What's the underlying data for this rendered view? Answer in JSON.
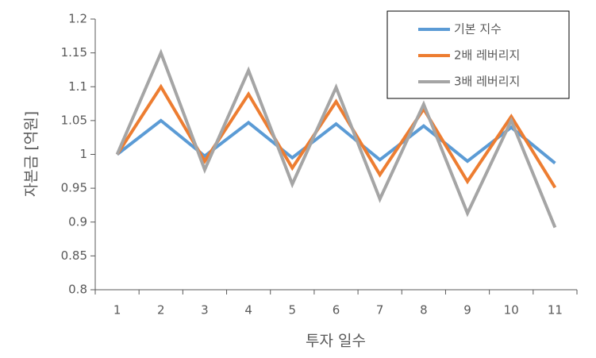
{
  "chart_data": {
    "type": "line",
    "y_label": "자본금 [억원]",
    "x_label": "투자 일수",
    "categories": [
      "1",
      "2",
      "3",
      "4",
      "5",
      "6",
      "7",
      "8",
      "9",
      "10",
      "11"
    ],
    "series": [
      {
        "name": "기본 지수",
        "color": "#5b9bd5",
        "values": [
          1,
          1.05,
          0.9975,
          1.047,
          0.995,
          1.045,
          0.992,
          1.042,
          0.99,
          1.04,
          0.987
        ]
      },
      {
        "name": "2배 레버리지",
        "color": "#ed7d31",
        "values": [
          1,
          1.1,
          0.99,
          1.089,
          0.98,
          1.078,
          0.97,
          1.067,
          0.96,
          1.056,
          0.951
        ]
      },
      {
        "name": "3배 레버리지",
        "color": "#a5a5a5",
        "values": [
          1,
          1.15,
          0.9775,
          1.124,
          0.956,
          1.099,
          0.934,
          1.074,
          0.913,
          1.05,
          0.892
        ]
      }
    ],
    "ylim": [
      0.8,
      1.2
    ],
    "yticks": [
      0.8,
      0.85,
      0.9,
      0.95,
      1,
      1.05,
      1.1,
      1.15,
      1.2
    ],
    "grid": false,
    "legend": "top-right"
  }
}
